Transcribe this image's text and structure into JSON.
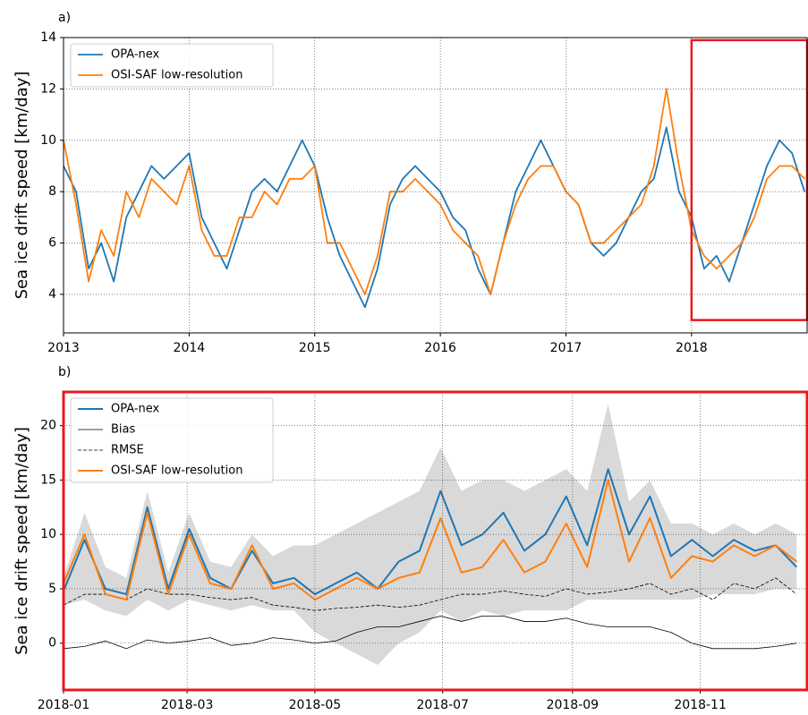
{
  "chart_data": [
    {
      "type": "line",
      "label": "a)",
      "ylabel": "Sea ice drift speed [km/day]",
      "x": [
        2013.0,
        2013.1,
        2013.2,
        2013.3,
        2013.4,
        2013.5,
        2013.6,
        2013.7,
        2013.8,
        2013.9,
        2014.0,
        2014.1,
        2014.2,
        2014.3,
        2014.4,
        2014.5,
        2014.6,
        2014.7,
        2014.8,
        2014.9,
        2015.0,
        2015.1,
        2015.2,
        2015.3,
        2015.4,
        2015.5,
        2015.6,
        2015.7,
        2015.8,
        2015.9,
        2016.0,
        2016.1,
        2016.2,
        2016.3,
        2016.4,
        2016.5,
        2016.6,
        2016.7,
        2016.8,
        2016.9,
        2017.0,
        2017.1,
        2017.2,
        2017.3,
        2017.4,
        2017.5,
        2017.6,
        2017.7,
        2017.8,
        2017.9,
        2018.0,
        2018.1,
        2018.2,
        2018.3,
        2018.4,
        2018.5,
        2018.6,
        2018.7,
        2018.8,
        2018.9
      ],
      "series": [
        {
          "name": "OPA-nex",
          "color": "#1f77b4",
          "values": [
            9,
            8,
            5,
            6,
            4.5,
            7,
            8,
            9,
            8.5,
            9,
            9.5,
            7,
            6,
            5,
            6.5,
            8,
            8.5,
            8,
            9,
            10,
            9,
            7,
            5.5,
            4.5,
            3.5,
            5,
            7.5,
            8.5,
            9,
            8.5,
            8,
            7,
            6.5,
            5,
            4,
            6,
            8,
            9,
            10,
            9,
            8,
            7.5,
            6,
            5.5,
            6,
            7,
            8,
            8.5,
            10.5,
            8,
            7,
            5,
            5.5,
            4.5,
            6,
            7.5,
            9,
            10,
            9.5,
            8
          ]
        },
        {
          "name": "OSI-SAF low-resolution",
          "color": "#ff7f0e",
          "values": [
            10,
            7.5,
            4.5,
            6.5,
            5.5,
            8,
            7,
            8.5,
            8,
            7.5,
            9,
            6.5,
            5.5,
            5.5,
            7,
            7,
            8,
            7.5,
            8.5,
            8.5,
            9,
            6,
            6,
            5,
            4,
            5.5,
            8,
            8,
            8.5,
            8,
            7.5,
            6.5,
            6,
            5.5,
            4,
            6,
            7.5,
            8.5,
            9,
            9,
            8,
            7.5,
            6,
            6,
            6.5,
            7,
            7.5,
            9,
            12,
            9,
            6.5,
            5.5,
            5,
            5.5,
            6,
            7,
            8.5,
            9,
            9,
            8.5
          ]
        }
      ],
      "xlim": [
        2013,
        2018.92
      ],
      "xticks": [
        2013,
        2014,
        2015,
        2016,
        2017,
        2018
      ],
      "ylim": [
        2.5,
        14
      ],
      "yticks": [
        4,
        6,
        8,
        10,
        12,
        14
      ],
      "grid": true,
      "legend": "upper left",
      "highlight": {
        "xlim": [
          2018,
          2018.92
        ],
        "ylim": [
          3,
          13.9
        ],
        "color": "#e8191c"
      }
    },
    {
      "type": "line",
      "label": "b)",
      "ylabel": "Sea ice drift speed [km/day]",
      "frame_color": "#e8191c",
      "x": [
        0,
        10,
        20,
        30,
        40,
        50,
        60,
        70,
        80,
        90,
        100,
        110,
        120,
        130,
        140,
        150,
        160,
        170,
        180,
        190,
        200,
        210,
        220,
        230,
        240,
        250,
        260,
        270,
        280,
        290,
        300,
        310,
        320,
        330,
        340,
        350
      ],
      "band": {
        "color": "#d9d9d9",
        "lower": [
          3.5,
          4,
          3,
          2.5,
          4,
          3,
          4,
          3.5,
          3,
          3.5,
          3,
          3,
          1,
          0,
          -1,
          -2,
          0,
          1,
          3,
          2,
          3,
          2.5,
          3,
          3,
          3,
          4,
          4,
          4,
          4,
          4,
          4,
          4.5,
          4.5,
          4.5,
          5,
          5
        ],
        "upper": [
          6,
          12,
          7,
          6,
          14,
          6.5,
          12,
          7.5,
          7,
          10,
          8,
          9,
          9,
          10,
          11,
          12,
          13,
          14,
          18,
          14,
          15,
          15,
          14,
          15,
          16,
          14,
          22,
          13,
          15,
          11,
          11,
          10,
          11,
          10,
          11,
          10
        ]
      },
      "series": [
        {
          "name": "OPA-nex",
          "color": "#1f77b4",
          "width": 2,
          "values": [
            4.8,
            9.5,
            5,
            4.5,
            12.5,
            5,
            10.5,
            6,
            5,
            8.5,
            5.5,
            6,
            4.5,
            5.5,
            6.5,
            5,
            7.5,
            8.5,
            14,
            9,
            10,
            12,
            8.5,
            10,
            13.5,
            9,
            16,
            10,
            13.5,
            8,
            9.5,
            8,
            9.5,
            8.5,
            9,
            7
          ]
        },
        {
          "name": "Bias",
          "color": "#000000",
          "width": 0.8,
          "values": [
            -0.5,
            -0.3,
            0.2,
            -0.5,
            0.3,
            0,
            0.2,
            0.5,
            -0.2,
            0,
            0.5,
            0.3,
            0,
            0.2,
            1,
            1.5,
            1.5,
            2,
            2.5,
            2,
            2.5,
            2.5,
            2,
            2,
            2.3,
            1.8,
            1.5,
            1.5,
            1.5,
            1,
            0,
            -0.5,
            -0.5,
            -0.5,
            -0.3,
            0
          ]
        },
        {
          "name": "RMSE",
          "color": "#000000",
          "width": 0.8,
          "linestyle": "dashed",
          "values": [
            3.5,
            4.5,
            4.5,
            4,
            5,
            4.5,
            4.5,
            4.2,
            4,
            4.2,
            3.5,
            3.3,
            3,
            3.2,
            3.3,
            3.5,
            3.3,
            3.5,
            4,
            4.5,
            4.5,
            4.8,
            4.5,
            4.3,
            5,
            4.5,
            4.7,
            5,
            5.5,
            4.5,
            5,
            4,
            5.5,
            5,
            6,
            4.5
          ]
        },
        {
          "name": "OSI-SAF low-resolution",
          "color": "#ff7f0e",
          "width": 2,
          "values": [
            5.5,
            10,
            4.5,
            4,
            12,
            4.5,
            10,
            5.5,
            5,
            9,
            5,
            5.5,
            4,
            5,
            6,
            5,
            6,
            6.5,
            11.5,
            6.5,
            7,
            9.5,
            6.5,
            7.5,
            11,
            7,
            15,
            7.5,
            11.5,
            6,
            8,
            7.5,
            9,
            8,
            9,
            7.5
          ]
        }
      ],
      "xlim": [
        0,
        355
      ],
      "xticks": [
        {
          "value": 0,
          "label": "2018-01"
        },
        {
          "value": 59,
          "label": "2018-03"
        },
        {
          "value": 120,
          "label": "2018-05"
        },
        {
          "value": 181,
          "label": "2018-07"
        },
        {
          "value": 243,
          "label": "2018-09"
        },
        {
          "value": 304,
          "label": "2018-11"
        }
      ],
      "ylim": [
        -4.3,
        23.1
      ],
      "yticks": [
        0,
        5,
        10,
        15,
        20
      ],
      "grid": true,
      "legend": "upper left"
    }
  ]
}
